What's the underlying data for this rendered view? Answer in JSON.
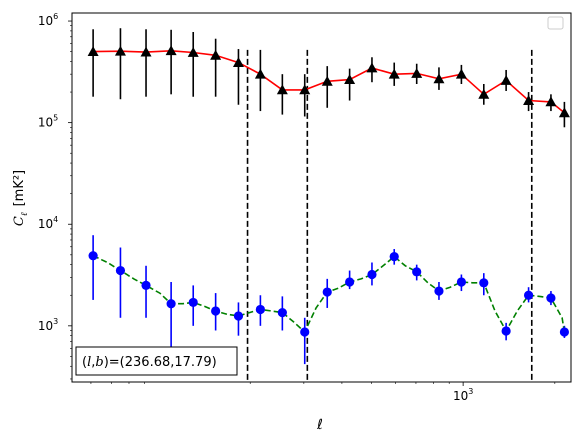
{
  "chart_data": {
    "type": "scatter",
    "title": "",
    "xlabel": "ℓ",
    "ylabel_main": "C",
    "ylabel_sub": "ℓ",
    "ylabel_units": "[mK²]",
    "x_scale": "log",
    "y_scale": "log",
    "xlim": [
      52,
      2260
    ],
    "ylim": [
      280,
      1200000
    ],
    "grid": false,
    "legend": "top-right (empty)",
    "x_major_ticks": [
      {
        "value": 1000,
        "base": "10",
        "exp": "3"
      }
    ],
    "y_major_ticks": [
      {
        "value": 1000,
        "base": "10",
        "exp": "3"
      },
      {
        "value": 10000,
        "base": "10",
        "exp": "4"
      },
      {
        "value": 100000,
        "base": "10",
        "exp": "5"
      },
      {
        "value": 1000000,
        "base": "10",
        "exp": "6"
      }
    ],
    "vlines": [
      196,
      308,
      1680
    ],
    "annotation": {
      "prefix": "(",
      "l": "l",
      "comma": ",",
      "b": "b",
      "suffix": ")=(236.68,17.79)"
    },
    "series": [
      {
        "color": "#ff0000",
        "marker": "triangle",
        "marker_color": "#000000",
        "line_style": "solid",
        "x": [
          61,
          75,
          91,
          110,
          130,
          154,
          183,
          216,
          255,
          302,
          358,
          424,
          502,
          594,
          704,
          833,
          987,
          1169,
          1384,
          1640,
          1942,
          2150
        ],
        "y": [
          500000,
          505000,
          495000,
          510000,
          490000,
          460000,
          390000,
          300000,
          210000,
          210000,
          255000,
          265000,
          345000,
          300000,
          305000,
          270000,
          300000,
          190000,
          260000,
          165000,
          160000,
          125000
        ],
        "err_low": [
          180000,
          170000,
          180000,
          190000,
          180000,
          180000,
          150000,
          130000,
          120000,
          115000,
          140000,
          165000,
          250000,
          230000,
          240000,
          210000,
          240000,
          150000,
          205000,
          130000,
          130000,
          90000
        ],
        "err_high": [
          830000,
          850000,
          830000,
          820000,
          780000,
          670000,
          530000,
          520000,
          300000,
          300000,
          360000,
          340000,
          440000,
          390000,
          380000,
          350000,
          370000,
          240000,
          330000,
          200000,
          190000,
          160000
        ]
      },
      {
        "color": "#008000",
        "marker": "circle",
        "marker_color": "#0000ff",
        "line_style": "dashed",
        "x": [
          61,
          68,
          75,
          83,
          91,
          101,
          110,
          120,
          130,
          142,
          154,
          168,
          183,
          199,
          216,
          235,
          255,
          277,
          302,
          329,
          358,
          390,
          424,
          462,
          502,
          546,
          594,
          646,
          704,
          766,
          833,
          907,
          987,
          1074,
          1169,
          1272,
          1384,
          1506,
          1640,
          1784,
          1942,
          2113,
          2150
        ],
        "y": [
          4900,
          4200,
          3500,
          2900,
          2500,
          2100,
          1650,
          1650,
          1700,
          1550,
          1400,
          1300,
          1250,
          1350,
          1450,
          1400,
          1350,
          1100,
          870,
          1500,
          2150,
          2350,
          2700,
          2900,
          3200,
          3900,
          4800,
          3900,
          3400,
          2650,
          2200,
          2400,
          2700,
          2650,
          2650,
          1400,
          890,
          1400,
          2000,
          1950,
          1880,
          1200,
          870
        ],
        "err_low": [
          1800,
          null,
          1200,
          null,
          1200,
          null,
          600,
          null,
          1000,
          null,
          900,
          null,
          800,
          null,
          1000,
          null,
          900,
          null,
          420,
          null,
          1500,
          null,
          2300,
          null,
          2500,
          null,
          4000,
          null,
          2800,
          null,
          1800,
          null,
          2200,
          null,
          2000,
          null,
          720,
          null,
          1700,
          null,
          1600,
          null,
          760
        ],
        "err_high": [
          7800,
          null,
          5900,
          null,
          3900,
          null,
          2700,
          null,
          2500,
          null,
          2100,
          null,
          1700,
          null,
          2000,
          null,
          1950,
          null,
          1200,
          null,
          2900,
          null,
          3500,
          null,
          4200,
          null,
          5700,
          null,
          4000,
          null,
          2700,
          null,
          3200,
          null,
          3300,
          null,
          1070,
          null,
          2400,
          null,
          2200,
          null,
          1000
        ]
      }
    ]
  }
}
